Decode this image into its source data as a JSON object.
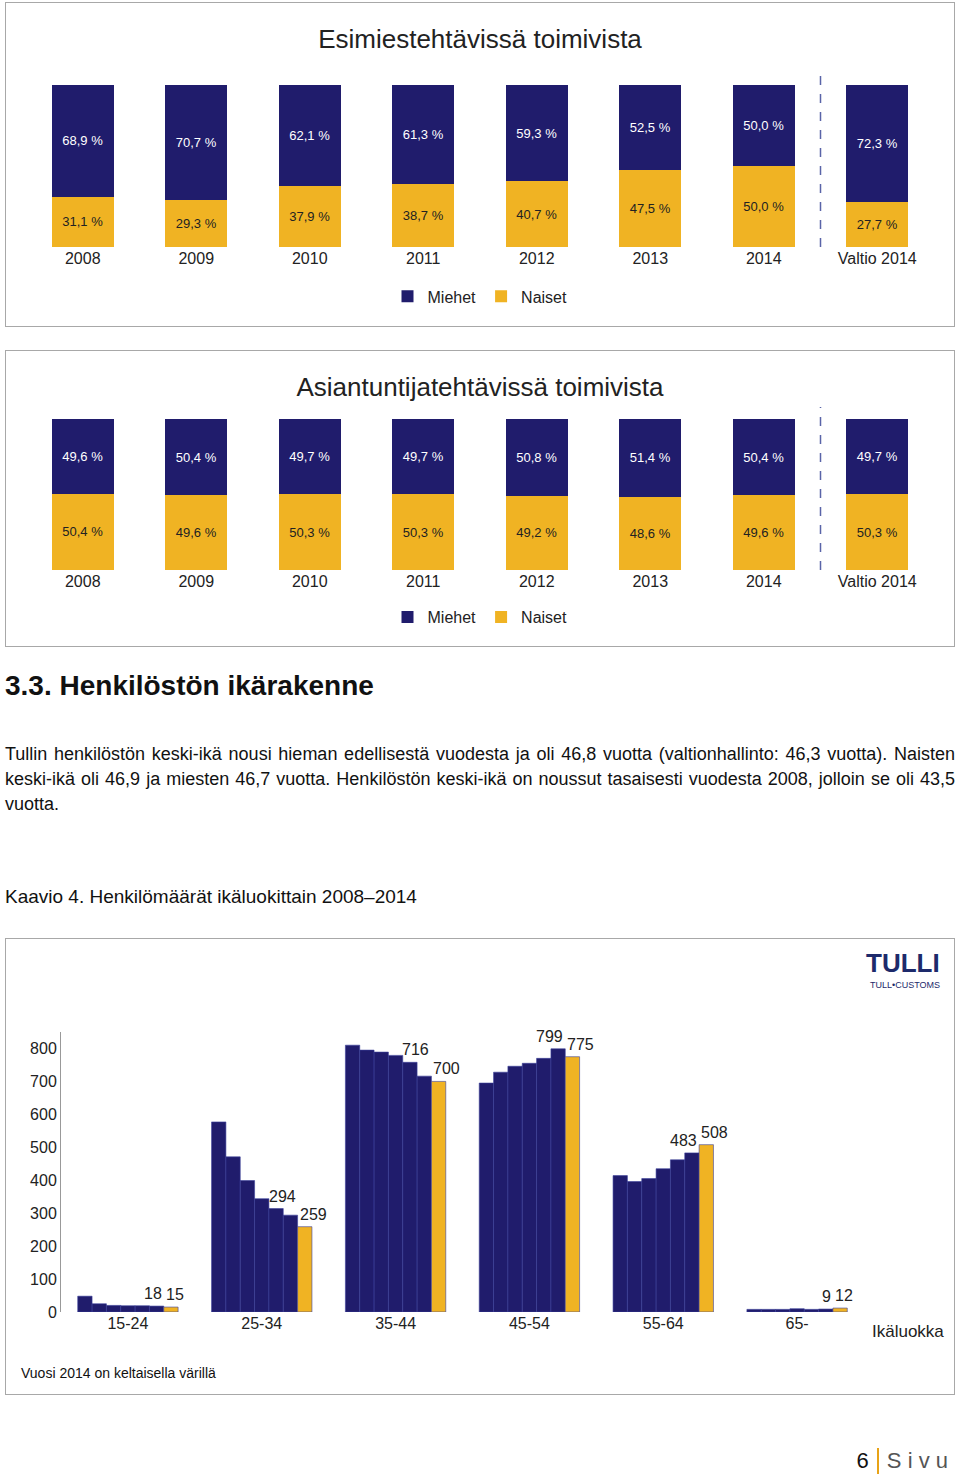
{
  "chart_data": [
    {
      "type": "bar",
      "title": "Esimiestehtävissä toimivista",
      "categories": [
        "2008",
        "2009",
        "2010",
        "2011",
        "2012",
        "2013",
        "2014",
        "Valtio 2014"
      ],
      "series": [
        {
          "name": "Naiset",
          "color": "#f0b323",
          "values": [
            31.1,
            29.3,
            37.9,
            38.7,
            40.7,
            47.5,
            50.0,
            27.7
          ],
          "value_labels": [
            "31,1 %",
            "29,3 %",
            "37,9 %",
            "38,7 %",
            "40,7 %",
            "47,5 %",
            "50,0 %",
            "27,7 %"
          ]
        },
        {
          "name": "Miehet",
          "color": "#201c6c",
          "values": [
            68.9,
            70.7,
            62.1,
            61.3,
            59.3,
            52.5,
            50.0,
            72.3
          ],
          "value_labels": [
            "68,9 %",
            "70,7 %",
            "62,1 %",
            "61,3 %",
            "59,3 %",
            "52,5 %",
            "50,0 %",
            "72,3 %"
          ]
        }
      ],
      "stacked": true,
      "data_labels": true,
      "ylim": [
        0,
        100
      ],
      "tick_labels": "x",
      "grid": false,
      "legend": "bottom"
    },
    {
      "type": "bar",
      "title": "Asiantuntijatehtävissä toimivista",
      "categories": [
        "2008",
        "2009",
        "2010",
        "2011",
        "2012",
        "2013",
        "2014",
        "Valtio 2014"
      ],
      "series": [
        {
          "name": "Naiset",
          "color": "#f0b323",
          "values": [
            50.4,
            49.6,
            50.3,
            50.3,
            49.2,
            48.6,
            49.6,
            50.3
          ],
          "value_labels": [
            "50,4 %",
            "49,6 %",
            "50,3 %",
            "50,3 %",
            "49,2 %",
            "48,6 %",
            "49,6 %",
            "50,3 %"
          ]
        },
        {
          "name": "Miehet",
          "color": "#201c6c",
          "values": [
            49.6,
            50.4,
            49.7,
            49.7,
            50.8,
            51.4,
            50.4,
            49.7
          ],
          "value_labels": [
            "49,6 %",
            "50,4 %",
            "49,7 %",
            "49,7 %",
            "50,8 %",
            "51,4 %",
            "50,4 %",
            "49,7 %"
          ]
        }
      ],
      "stacked": true,
      "data_labels": true,
      "ylim": [
        0,
        100
      ],
      "tick_labels": "x",
      "grid": false,
      "legend": "bottom"
    },
    {
      "type": "bar",
      "x_label": "Ikäluokka",
      "note": "Vuosi 2014 on keltaisella värillä",
      "logo": {
        "title": "TULLI",
        "subtitle": "TULL•CUSTOMS"
      },
      "categories": [
        "15-24",
        "25-34",
        "35-44",
        "45-54",
        "55-64",
        "65-"
      ],
      "series": [
        {
          "color": "#201c6c",
          "values": [
            48,
            577,
            810,
            695,
            414,
            8
          ]
        },
        {
          "color": "#201c6c",
          "values": [
            25,
            471,
            795,
            728,
            396,
            8
          ]
        },
        {
          "color": "#201c6c",
          "values": [
            20,
            399,
            789,
            746,
            405,
            8
          ]
        },
        {
          "color": "#201c6c",
          "values": [
            19,
            344,
            779,
            755,
            435,
            10
          ]
        },
        {
          "color": "#201c6c",
          "values": [
            19,
            314,
            758,
            770,
            462,
            8
          ]
        },
        {
          "color": "#201c6c",
          "values": [
            18,
            294,
            716,
            799,
            483,
            9
          ],
          "data_labels": true
        },
        {
          "color": "#f0b323",
          "values": [
            15,
            259,
            700,
            775,
            508,
            12
          ],
          "data_labels": true
        }
      ],
      "ylim": [
        0,
        850
      ],
      "yticks": [
        0,
        100,
        200,
        300,
        400,
        500,
        600,
        700,
        800
      ],
      "grid": false
    }
  ],
  "section": {
    "heading": "3.3. Henkilöstön ikärakenne",
    "paragraph": "Tullin henkilöstön keski-ikä nousi hieman edellisestä vuodesta ja oli 46,8 vuotta (valtionhallinto: 46,3 vuotta). Naisten keski-ikä oli 46,9 ja miesten 46,7 vuotta. Henkilöstön keski-ikä on noussut tasaisesti vuodesta 2008, jolloin se oli 43,5 vuotta."
  },
  "caption": "Kaavio 4. Henkilömäärät ikäluokittain 2008–2014",
  "footer": {
    "page": 6,
    "text": "S i v u"
  }
}
